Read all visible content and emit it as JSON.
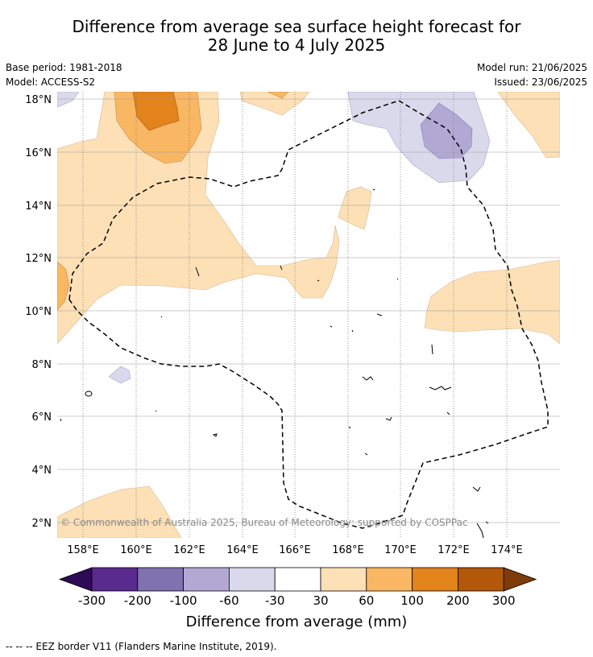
{
  "title_line1": "Difference from average sea surface height forecast for",
  "title_line2": "28 June to 4 July 2025",
  "base_period": "Base period: 1981-2018",
  "model": "Model: ACCESS-S2",
  "model_run": "Model run: 21/06/2025",
  "issued": "Issued: 23/06/2025",
  "copyright": "© Commonwealth of Australia 2025, Bureau of Meteorology; supported by COSPPac",
  "lat_labels": [
    "18°N",
    "16°N",
    "14°N",
    "12°N",
    "10°N",
    "8°N",
    "6°N",
    "4°N",
    "2°N"
  ],
  "lon_labels": [
    "158°E",
    "160°E",
    "162°E",
    "164°E",
    "166°E",
    "168°E",
    "170°E",
    "172°E",
    "174°E"
  ],
  "colorbar": {
    "title": "Difference from average (mm)",
    "ticks": [
      "-300",
      "-200",
      "-100",
      "-60",
      "-30",
      "30",
      "60",
      "100",
      "200",
      "300"
    ],
    "colors": [
      "#2d0b57",
      "#5b2a8e",
      "#8072b0",
      "#b1a9d3",
      "#d9d9eb",
      "#ffffff",
      "#fde0b6",
      "#f9b764",
      "#e2831b",
      "#b35709",
      "#7f3b08"
    ]
  },
  "footnote": "-- -- -- EEZ border V11 (Flanders Marine Institute, 2019).",
  "legend_colors": {
    "light_orange": "#fde0b6",
    "mid_orange": "#f9b764",
    "dark_orange": "#e2831b",
    "light_purple": "#d9d9eb",
    "mid_purple": "#b1a9d3"
  }
}
